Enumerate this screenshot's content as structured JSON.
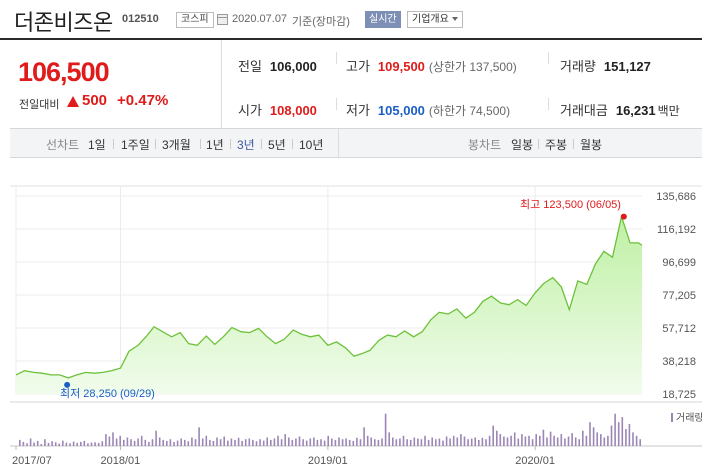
{
  "header": {
    "company_name": "더존비즈온",
    "stock_code": "012510",
    "market": "코스피",
    "date": "2020.07.07",
    "date_suffix": "기준(장마감)",
    "realtime_label": "실시간",
    "corp_info_label": "기업개요"
  },
  "quote": {
    "price": "106,500",
    "change_label": "전일대비",
    "change_value": "500",
    "change_pct": "+0.47%",
    "direction": "up",
    "prev_close_label": "전일",
    "prev_close": "106,000",
    "high_label": "고가",
    "high": "109,500",
    "upper_limit": "(상한가 137,500)",
    "volume_label": "거래량",
    "volume": "151,127",
    "open_label": "시가",
    "open": "108,000",
    "low_label": "저가",
    "low": "105,000",
    "lower_limit": "(하한가 74,500)",
    "amount_label": "거래대금",
    "amount": "16,231",
    "amount_unit": "백만"
  },
  "toolbar": {
    "line_chart_label": "선차트",
    "periods": [
      "1일",
      "1주일",
      "3개월",
      "1년",
      "3년",
      "5년",
      "10년"
    ],
    "active_period": "3년",
    "candle_chart_label": "봉차트",
    "candle_periods": [
      "일봉",
      "주봉",
      "월봉"
    ]
  },
  "colors": {
    "up": "#e01b1b",
    "down": "#1a5fc6",
    "line": "#6dc13a",
    "area_top": "#bff0a4",
    "area_bottom": "#f1fcec",
    "volume_bar": "#9b86b5"
  },
  "chart_data": {
    "type": "area",
    "y_ticks": [
      "135,686",
      "116,192",
      "96,699",
      "77,205",
      "57,712",
      "38,218",
      "18,725"
    ],
    "ylim": [
      18725,
      135686
    ],
    "x_ticks": [
      "2017/07",
      "2018/01",
      "2019/01",
      "2020/01"
    ],
    "x_tick_dates": [
      "2017-07",
      "2018-01",
      "2019-01",
      "2020-01"
    ],
    "xlim": [
      "2017-07",
      "2020-07-07"
    ],
    "series": [
      {
        "x": [
          "2017-07",
          "2017-07-16",
          "2017-08",
          "2017-08-16",
          "2017-09",
          "2017-09-16",
          "2017-10",
          "2017-10-16",
          "2017-11",
          "2017-11-16",
          "2017-12",
          "2017-12-16",
          "2018-01",
          "2018-01-16",
          "2018-02",
          "2018-02-16",
          "2018-03",
          "2018-03-16",
          "2018-04",
          "2018-04-16",
          "2018-05",
          "2018-05-16",
          "2018-06",
          "2018-06-16",
          "2018-07",
          "2018-07-16",
          "2018-08",
          "2018-08-16",
          "2018-09",
          "2018-09-16",
          "2018-10",
          "2018-10-16",
          "2018-11",
          "2018-11-16",
          "2018-12",
          "2018-12-16",
          "2019-01",
          "2019-01-16",
          "2019-02",
          "2019-02-16",
          "2019-03",
          "2019-03-16",
          "2019-04",
          "2019-04-16",
          "2019-05",
          "2019-05-16",
          "2019-06",
          "2019-06-16",
          "2019-07",
          "2019-07-16",
          "2019-08",
          "2019-08-16",
          "2019-09",
          "2019-09-16",
          "2019-10",
          "2019-10-16",
          "2019-11",
          "2019-11-16",
          "2019-12",
          "2019-12-16",
          "2020-01",
          "2020-01-16",
          "2020-02",
          "2020-02-16",
          "2020-03",
          "2020-03-16",
          "2020-04",
          "2020-04-16",
          "2020-05",
          "2020-05-16",
          "2020-06",
          "2020-06-16",
          "2020-07",
          "2020-07-07"
        ],
        "y": [
          30000,
          32500,
          31500,
          31000,
          30000,
          30000,
          28250,
          30000,
          31500,
          31000,
          31500,
          32500,
          34000,
          44000,
          47500,
          53000,
          58500,
          55500,
          52500,
          55000,
          48500,
          47500,
          53000,
          48000,
          52500,
          58000,
          55500,
          55000,
          57500,
          52500,
          48500,
          51000,
          56500,
          54000,
          52500,
          53500,
          47500,
          49500,
          46000,
          41000,
          42500,
          44500,
          50500,
          53500,
          52500,
          56000,
          52500,
          55500,
          62500,
          67000,
          66000,
          69000,
          63500,
          67000,
          73500,
          76500,
          72500,
          71500,
          74500,
          71000,
          78500,
          84000,
          87500,
          82000,
          68500,
          85500,
          83500,
          95500,
          103000,
          99500,
          123500,
          108000,
          108000,
          106500
        ]
      }
    ],
    "high_label": "최고 123,500 (06/05)",
    "high_value": 123500,
    "high_date": "2020-06-05",
    "low_label": "최저 28,250 (09/29)",
    "low_value": 28250,
    "low_date": "2017-09-29",
    "volume_label": "거래량",
    "volume": [
      0.18,
      0.12,
      0.08,
      0.22,
      0.1,
      0.15,
      0.06,
      0.2,
      0.09,
      0.14,
      0.11,
      0.07,
      0.16,
      0.1,
      0.08,
      0.13,
      0.09,
      0.12,
      0.15,
      0.08,
      0.1,
      0.11,
      0.09,
      0.14,
      0.35,
      0.28,
      0.4,
      0.22,
      0.3,
      0.18,
      0.25,
      0.2,
      0.15,
      0.22,
      0.3,
      0.18,
      0.12,
      0.2,
      0.45,
      0.25,
      0.18,
      0.15,
      0.2,
      0.12,
      0.16,
      0.22,
      0.18,
      0.14,
      0.25,
      0.2,
      0.55,
      0.22,
      0.3,
      0.18,
      0.15,
      0.25,
      0.2,
      0.28,
      0.16,
      0.22,
      0.18,
      0.24,
      0.15,
      0.2,
      0.22,
      0.18,
      0.14,
      0.2,
      0.16,
      0.25,
      0.18,
      0.22,
      0.3,
      0.2,
      0.35,
      0.25,
      0.18,
      0.22,
      0.28,
      0.2,
      0.16,
      0.22,
      0.25,
      0.18,
      0.2,
      0.16,
      0.3,
      0.22,
      0.18,
      0.25,
      0.2,
      0.22,
      0.18,
      0.15,
      0.24,
      0.2,
      0.55,
      0.3,
      0.25,
      0.2,
      0.18,
      0.22,
      0.95,
      0.4,
      0.25,
      0.2,
      0.22,
      0.3,
      0.2,
      0.18,
      0.25,
      0.22,
      0.2,
      0.3,
      0.18,
      0.25,
      0.2,
      0.22,
      0.16,
      0.28,
      0.22,
      0.3,
      0.25,
      0.35,
      0.28,
      0.2,
      0.22,
      0.25,
      0.18,
      0.24,
      0.2,
      0.3,
      0.6,
      0.45,
      0.35,
      0.28,
      0.25,
      0.3,
      0.4,
      0.22,
      0.35,
      0.28,
      0.3,
      0.2,
      0.35,
      0.3,
      0.48,
      0.25,
      0.42,
      0.3,
      0.25,
      0.35,
      0.22,
      0.28,
      0.38,
      0.25,
      0.2,
      0.45,
      0.3,
      0.7,
      0.55,
      0.4,
      0.35,
      0.25,
      0.3,
      0.6,
      0.95,
      0.7,
      0.85,
      0.5,
      0.65,
      0.4,
      0.3,
      0.2
    ]
  }
}
